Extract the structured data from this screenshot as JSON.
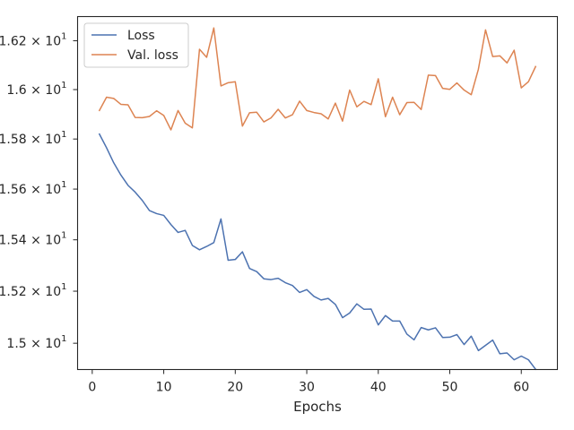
{
  "chart_data": {
    "type": "line",
    "xlabel": "Epochs",
    "ylabel": "",
    "xlim": [
      -2.05,
      65.05
    ],
    "ylim": [
      14.9,
      16.3
    ],
    "x_ticks": [
      0,
      10,
      20,
      30,
      40,
      50,
      60
    ],
    "x_tick_labels": [
      "0",
      "10",
      "20",
      "30",
      "40",
      "50",
      "60"
    ],
    "y_ticks": [
      15.0,
      15.2,
      15.4,
      15.6,
      15.8,
      16.0,
      16.2
    ],
    "y_tick_labels": [
      "1.5 × 10¹",
      "1.52 × 10¹",
      "1.54 × 10¹",
      "1.56 × 10¹",
      "1.58 × 10¹",
      "1.6 × 10¹",
      "1.62 × 10¹"
    ],
    "y_tick_mantissas": [
      "1.5",
      "1.52",
      "1.54",
      "1.56",
      "1.58",
      "1.6",
      "1.62"
    ],
    "y_tick_base": "10",
    "y_tick_exponent": "1",
    "y_scale": "log",
    "grid": false,
    "legend_position": "top-left",
    "x": [
      1,
      2,
      3,
      4,
      5,
      6,
      7,
      8,
      9,
      10,
      11,
      12,
      13,
      14,
      15,
      16,
      17,
      18,
      19,
      20,
      21,
      22,
      23,
      24,
      25,
      26,
      27,
      28,
      29,
      30,
      31,
      32,
      33,
      34,
      35,
      36,
      37,
      38,
      39,
      40,
      41,
      42,
      43,
      44,
      45,
      46,
      47,
      48,
      49,
      50,
      51,
      52,
      53,
      54,
      55,
      56,
      57,
      58,
      59,
      60,
      61,
      62
    ],
    "series": [
      {
        "name": "Loss",
        "color": "#4c72b0",
        "values": [
          15.82,
          15.765,
          15.705,
          15.656,
          15.615,
          15.588,
          15.555,
          15.515,
          15.503,
          15.496,
          15.46,
          15.429,
          15.437,
          15.378,
          15.361,
          15.374,
          15.389,
          15.482,
          15.32,
          15.323,
          15.353,
          15.288,
          15.276,
          15.248,
          15.245,
          15.25,
          15.233,
          15.222,
          15.195,
          15.206,
          15.18,
          15.166,
          15.172,
          15.149,
          15.098,
          15.116,
          15.151,
          15.13,
          15.131,
          15.07,
          15.106,
          15.085,
          15.085,
          15.035,
          15.013,
          15.06,
          15.051,
          15.059,
          15.022,
          15.023,
          15.033,
          14.995,
          15.027,
          14.972,
          14.992,
          15.012,
          14.96,
          14.963,
          14.937,
          14.951,
          14.937,
          14.901
        ]
      },
      {
        "name": "Val. loss",
        "color": "#dd8452",
        "values": [
          15.915,
          15.969,
          15.964,
          15.94,
          15.938,
          15.887,
          15.886,
          15.891,
          15.914,
          15.895,
          15.837,
          15.915,
          15.864,
          15.845,
          16.165,
          16.132,
          16.253,
          16.015,
          16.028,
          16.032,
          15.852,
          15.906,
          15.908,
          15.869,
          15.885,
          15.92,
          15.885,
          15.898,
          15.953,
          15.915,
          15.907,
          15.902,
          15.881,
          15.945,
          15.872,
          15.998,
          15.93,
          15.952,
          15.939,
          16.044,
          15.89,
          15.969,
          15.898,
          15.947,
          15.948,
          15.919,
          16.059,
          16.057,
          16.005,
          16.001,
          16.027,
          15.998,
          15.979,
          16.083,
          16.245,
          16.135,
          16.138,
          16.109,
          16.161,
          16.007,
          16.032,
          16.094
        ]
      }
    ]
  }
}
